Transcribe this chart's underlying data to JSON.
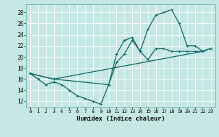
{
  "background_color": "#c5e8e5",
  "grid_color": "#b0d8d5",
  "line_color": "#1a6b6b",
  "xlabel": "Humidex (Indice chaleur)",
  "xlim": [
    -0.5,
    23.5
  ],
  "ylim": [
    11.0,
    29.5
  ],
  "yticks": [
    12,
    14,
    16,
    18,
    20,
    22,
    24,
    26,
    28
  ],
  "xticks": [
    0,
    1,
    2,
    3,
    4,
    5,
    6,
    7,
    8,
    9,
    10,
    11,
    12,
    13,
    14,
    15,
    16,
    17,
    18,
    19,
    20,
    21,
    22,
    23
  ],
  "curve1_x": [
    0,
    1,
    2,
    3,
    4,
    5,
    6,
    7,
    8,
    9,
    10,
    11,
    12,
    13,
    14,
    15,
    16,
    17,
    18,
    19,
    20,
    21,
    22,
    23
  ],
  "curve1_y": [
    17.0,
    16.0,
    15.0,
    15.5,
    15.0,
    14.0,
    13.0,
    12.5,
    12.0,
    11.5,
    15.0,
    19.0,
    20.5,
    23.0,
    21.0,
    19.5,
    21.5,
    21.5,
    21.0,
    21.0,
    21.0,
    21.0,
    21.0,
    21.5
  ],
  "curve2_x": [
    0,
    3,
    10,
    11,
    12,
    13,
    14,
    15,
    16,
    17,
    18,
    19,
    20,
    21,
    22,
    23
  ],
  "curve2_y": [
    17.0,
    16.0,
    15.0,
    20.5,
    23.0,
    23.5,
    21.0,
    25.0,
    27.5,
    28.0,
    28.5,
    26.0,
    22.0,
    22.0,
    21.0,
    21.5
  ],
  "curve3_x": [
    0,
    3,
    22,
    23
  ],
  "curve3_y": [
    17.0,
    16.0,
    21.0,
    21.5
  ]
}
